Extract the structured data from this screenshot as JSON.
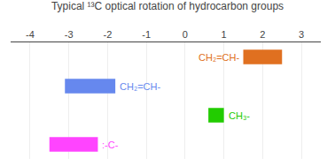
{
  "chart_data": {
    "type": "bar",
    "orientation": "horizontal",
    "title": "Typical ¹³C optical rotation of hydrocarbon groups",
    "categories": [
      "CH₂=CH-",
      "CH₂=CH-",
      "CH₃-",
      ":-C-"
    ],
    "starts": [
      1.5,
      -3.1,
      0.6,
      -3.5
    ],
    "ends": [
      2.5,
      -1.8,
      1.0,
      -2.25
    ],
    "colors": [
      "#e07020",
      "#6688ee",
      "#22cc00",
      "#ff44ff"
    ],
    "xlim": [
      -4.5,
      3.5
    ],
    "xticks": [
      -4,
      -3,
      -2,
      -1,
      0,
      1,
      2,
      3
    ],
    "grid": true,
    "tick_labels": "x"
  }
}
